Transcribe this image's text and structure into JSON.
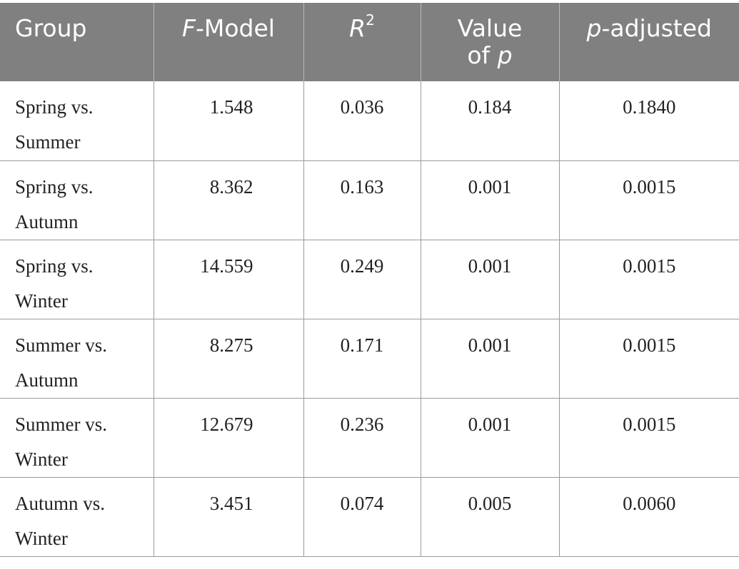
{
  "table": {
    "headers": {
      "group": "Group",
      "fmodel_italic": "F",
      "fmodel_rest": "-Model",
      "r2_base": "R",
      "r2_sup": "2",
      "value_of_p_line1": "Value",
      "value_of_p_line2_text": "of ",
      "value_of_p_line2_italic": "p",
      "p_adjusted_italic": "p",
      "p_adjusted_rest": "-adjusted"
    },
    "rows": [
      {
        "group_line1": "Spring vs.",
        "group_line2": "Summer",
        "f_model": "1.548",
        "r2": "0.036",
        "value_of_p": "0.184",
        "p_adjusted": "0.1840"
      },
      {
        "group_line1": "Spring vs.",
        "group_line2": "Autumn",
        "f_model": "8.362",
        "r2": "0.163",
        "value_of_p": "0.001",
        "p_adjusted": "0.0015"
      },
      {
        "group_line1": "Spring vs.",
        "group_line2": "Winter",
        "f_model": "14.559",
        "r2": "0.249",
        "value_of_p": "0.001",
        "p_adjusted": "0.0015"
      },
      {
        "group_line1": "Summer vs.",
        "group_line2": "Autumn",
        "f_model": "8.275",
        "r2": "0.171",
        "value_of_p": "0.001",
        "p_adjusted": "0.0015"
      },
      {
        "group_line1": "Summer vs.",
        "group_line2": "Winter",
        "f_model": "12.679",
        "r2": "0.236",
        "value_of_p": "0.001",
        "p_adjusted": "0.0015"
      },
      {
        "group_line1": "Autumn vs.",
        "group_line2": "Winter",
        "f_model": "3.451",
        "r2": "0.074",
        "value_of_p": "0.005",
        "p_adjusted": "0.0060"
      }
    ]
  }
}
